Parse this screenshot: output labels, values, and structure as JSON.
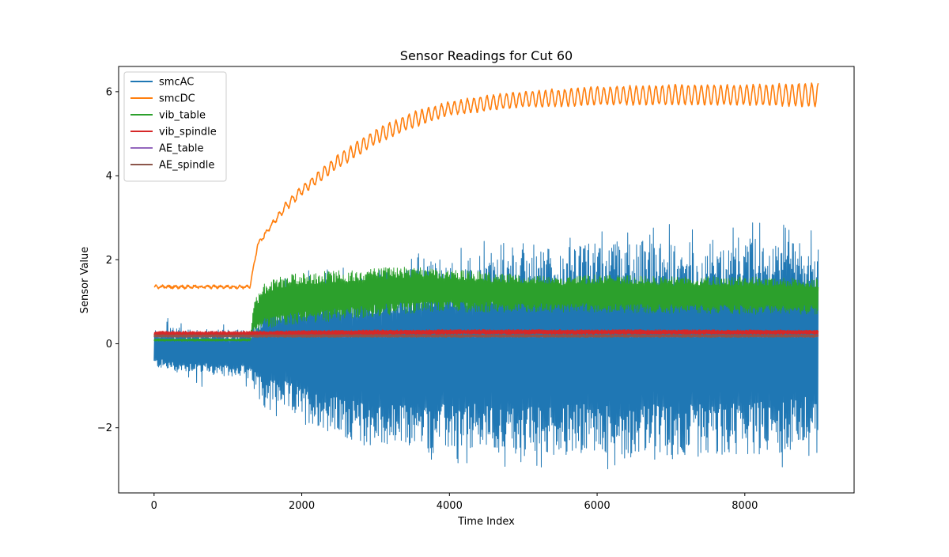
{
  "chart_data": {
    "type": "line",
    "title": "Sensor Readings for Cut 60",
    "xlabel": "Time Index",
    "ylabel": "Sensor Value",
    "xlim": [
      -480,
      9480
    ],
    "ylim": [
      -3.55,
      6.6
    ],
    "xticks": [
      0,
      2000,
      4000,
      6000,
      8000
    ],
    "yticks": [
      -2,
      0,
      2,
      4,
      6
    ],
    "ytick_labels": [
      "−2",
      "0",
      "2",
      "4",
      "6"
    ],
    "n_points": 9000,
    "legend_position": "upper-left",
    "series": [
      {
        "name": "smcAC",
        "color": "#1f77b4",
        "envelope": {
          "x": [
            0,
            300,
            600,
            900,
            1200,
            1300,
            1500,
            2000,
            2500,
            3000,
            3500,
            4000,
            4500,
            5000,
            5500,
            6000,
            6500,
            7000,
            7500,
            8000,
            8500,
            9000
          ],
          "upper": [
            0.35,
            0.38,
            0.35,
            0.34,
            0.33,
            0.4,
            1.0,
            1.4,
            1.55,
            1.65,
            1.8,
            2.0,
            2.1,
            2.2,
            2.3,
            2.4,
            2.45,
            2.5,
            2.5,
            2.55,
            2.5,
            2.5
          ],
          "lower": [
            -0.55,
            -0.7,
            -0.65,
            -0.8,
            -0.75,
            -0.9,
            -1.3,
            -1.8,
            -2.2,
            -2.45,
            -2.5,
            -2.55,
            -2.6,
            -2.7,
            -2.65,
            -2.7,
            -2.7,
            -2.75,
            -2.7,
            -2.65,
            -2.6,
            -2.4
          ]
        }
      },
      {
        "name": "smcDC",
        "color": "#ff7f0e",
        "envelope": {
          "x": [
            0,
            1300,
            1400,
            1600,
            1800,
            2000,
            2500,
            3000,
            3500,
            4000,
            4500,
            5000,
            5500,
            6000,
            7000,
            8000,
            9000
          ],
          "upper": [
            1.38,
            1.38,
            2.4,
            2.9,
            3.4,
            3.75,
            4.5,
            5.1,
            5.5,
            5.75,
            5.9,
            6.0,
            6.05,
            6.1,
            6.15,
            6.15,
            6.2
          ],
          "lower": [
            1.33,
            1.33,
            2.3,
            2.8,
            3.2,
            3.55,
            4.2,
            4.75,
            5.15,
            5.45,
            5.55,
            5.65,
            5.65,
            5.7,
            5.7,
            5.7,
            5.65
          ]
        }
      },
      {
        "name": "vib_table",
        "color": "#2ca02c",
        "envelope": {
          "x": [
            0,
            1300,
            1350,
            1500,
            1800,
            2500,
            3000,
            3600,
            4500,
            5500,
            6000,
            7000,
            8000,
            9000
          ],
          "upper": [
            0.12,
            0.12,
            1.0,
            1.45,
            1.65,
            1.75,
            1.8,
            1.85,
            1.7,
            1.6,
            1.65,
            1.6,
            1.6,
            1.55
          ],
          "lower": [
            0.06,
            0.06,
            0.25,
            0.35,
            0.45,
            0.55,
            0.65,
            0.75,
            0.75,
            0.75,
            0.75,
            0.72,
            0.7,
            0.7
          ]
        }
      },
      {
        "name": "vib_spindle",
        "color": "#d62728",
        "envelope": {
          "x": [
            0,
            1300,
            2000,
            4000,
            6000,
            9000
          ],
          "upper": [
            0.3,
            0.3,
            0.32,
            0.34,
            0.34,
            0.33
          ],
          "lower": [
            0.18,
            0.18,
            0.2,
            0.22,
            0.22,
            0.22
          ]
        }
      },
      {
        "name": "AE_table",
        "color": "#9467bd",
        "envelope": {
          "x": [
            0,
            9000
          ],
          "upper": [
            0.2,
            0.2
          ],
          "lower": [
            0.16,
            0.16
          ]
        }
      },
      {
        "name": "AE_spindle",
        "color": "#8c564b",
        "envelope": {
          "x": [
            0,
            9000
          ],
          "upper": [
            0.22,
            0.22
          ],
          "lower": [
            0.15,
            0.15
          ]
        }
      }
    ]
  }
}
